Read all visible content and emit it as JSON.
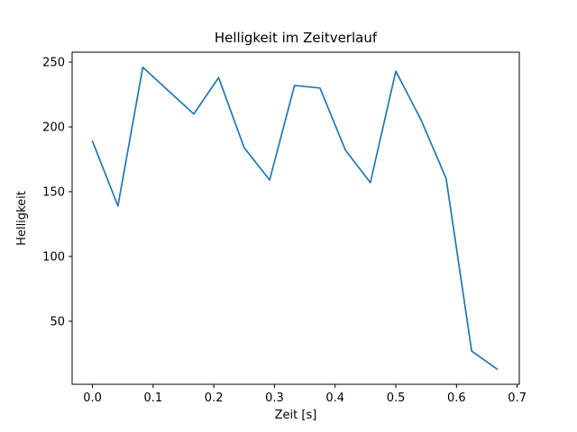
{
  "chart_data": {
    "type": "line",
    "title": "Helligkeit im Zeitverlauf",
    "xlabel": "Zeit [s]",
    "ylabel": "Helligkeit",
    "x": [
      0.0,
      0.042,
      0.083,
      0.125,
      0.167,
      0.208,
      0.25,
      0.292,
      0.333,
      0.375,
      0.417,
      0.458,
      0.5,
      0.542,
      0.583,
      0.625,
      0.667
    ],
    "y": [
      189,
      139,
      246,
      228,
      210,
      238,
      184,
      159,
      232,
      230,
      182,
      157,
      243,
      205,
      160,
      27,
      13
    ],
    "xlim": [
      -0.0335,
      0.7035
    ],
    "ylim": [
      1.35,
      257.65
    ],
    "xticks": [
      0.0,
      0.1,
      0.2,
      0.3,
      0.4,
      0.5,
      0.6,
      0.7
    ],
    "xtick_labels": [
      "0.0",
      "0.1",
      "0.2",
      "0.3",
      "0.4",
      "0.5",
      "0.6",
      "0.7"
    ],
    "yticks": [
      50,
      100,
      150,
      200,
      250
    ],
    "ytick_labels": [
      "50",
      "100",
      "150",
      "200",
      "250"
    ],
    "line_color": "#1f77b4",
    "spine_color": "#000000",
    "grid": false,
    "legend_position": "none"
  }
}
